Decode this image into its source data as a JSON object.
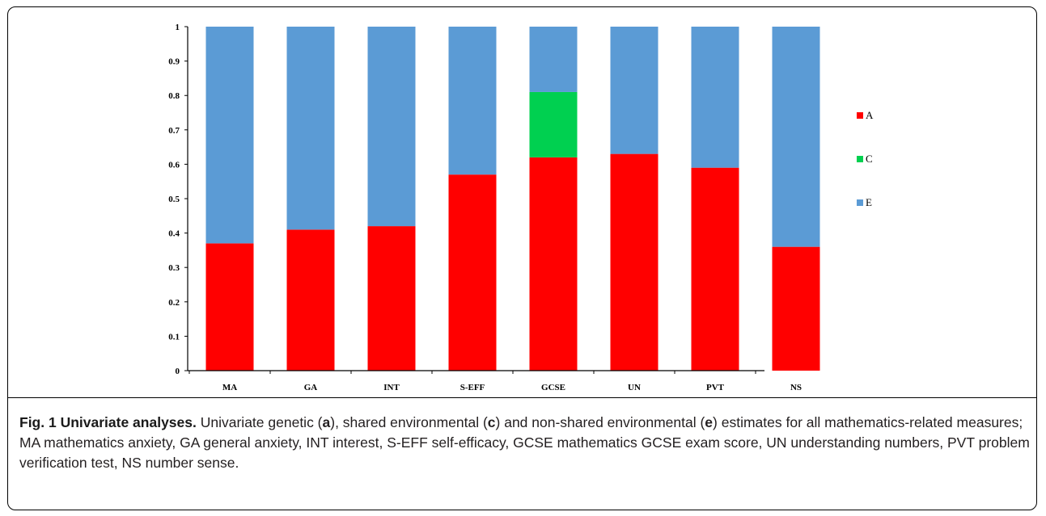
{
  "chart_data": {
    "type": "bar",
    "stacked": true,
    "categories": [
      "MA",
      "GA",
      "INT",
      "S-EFF",
      "GCSE",
      "UN",
      "PVT",
      "NS"
    ],
    "series": [
      {
        "name": "A",
        "color": "#ff0000",
        "values": [
          0.37,
          0.41,
          0.42,
          0.57,
          0.62,
          0.63,
          0.59,
          0.36
        ]
      },
      {
        "name": "C",
        "color": "#00d050",
        "values": [
          0,
          0,
          0,
          0,
          0.19,
          0,
          0,
          0
        ]
      },
      {
        "name": "E",
        "color": "#5b9bd5",
        "values": [
          0.63,
          0.59,
          0.58,
          0.43,
          0.19,
          0.37,
          0.41,
          0.64
        ]
      }
    ],
    "yticks": [
      "0",
      "0.1",
      "0.2",
      "0.3",
      "0.4",
      "0.5",
      "0.6",
      "0.7",
      "0.8",
      "0.9",
      "1"
    ],
    "ylim": [
      0,
      1
    ],
    "legend_position": "right"
  },
  "caption": {
    "label": "Fig. 1",
    "title": "Univariate analyses.",
    "t1": " Univariate genetic (",
    "a": "a",
    "t2": "), shared environmental (",
    "c": "c",
    "t3": ") and non-shared environmental (",
    "e": "e",
    "t4": ") estimates for all mathematics-related measures; MA mathematics anxiety, GA general anxiety, INT interest, S-EFF self-efficacy, GCSE mathematics GCSE exam score, UN understanding numbers, PVT problem verification test, NS number sense."
  }
}
